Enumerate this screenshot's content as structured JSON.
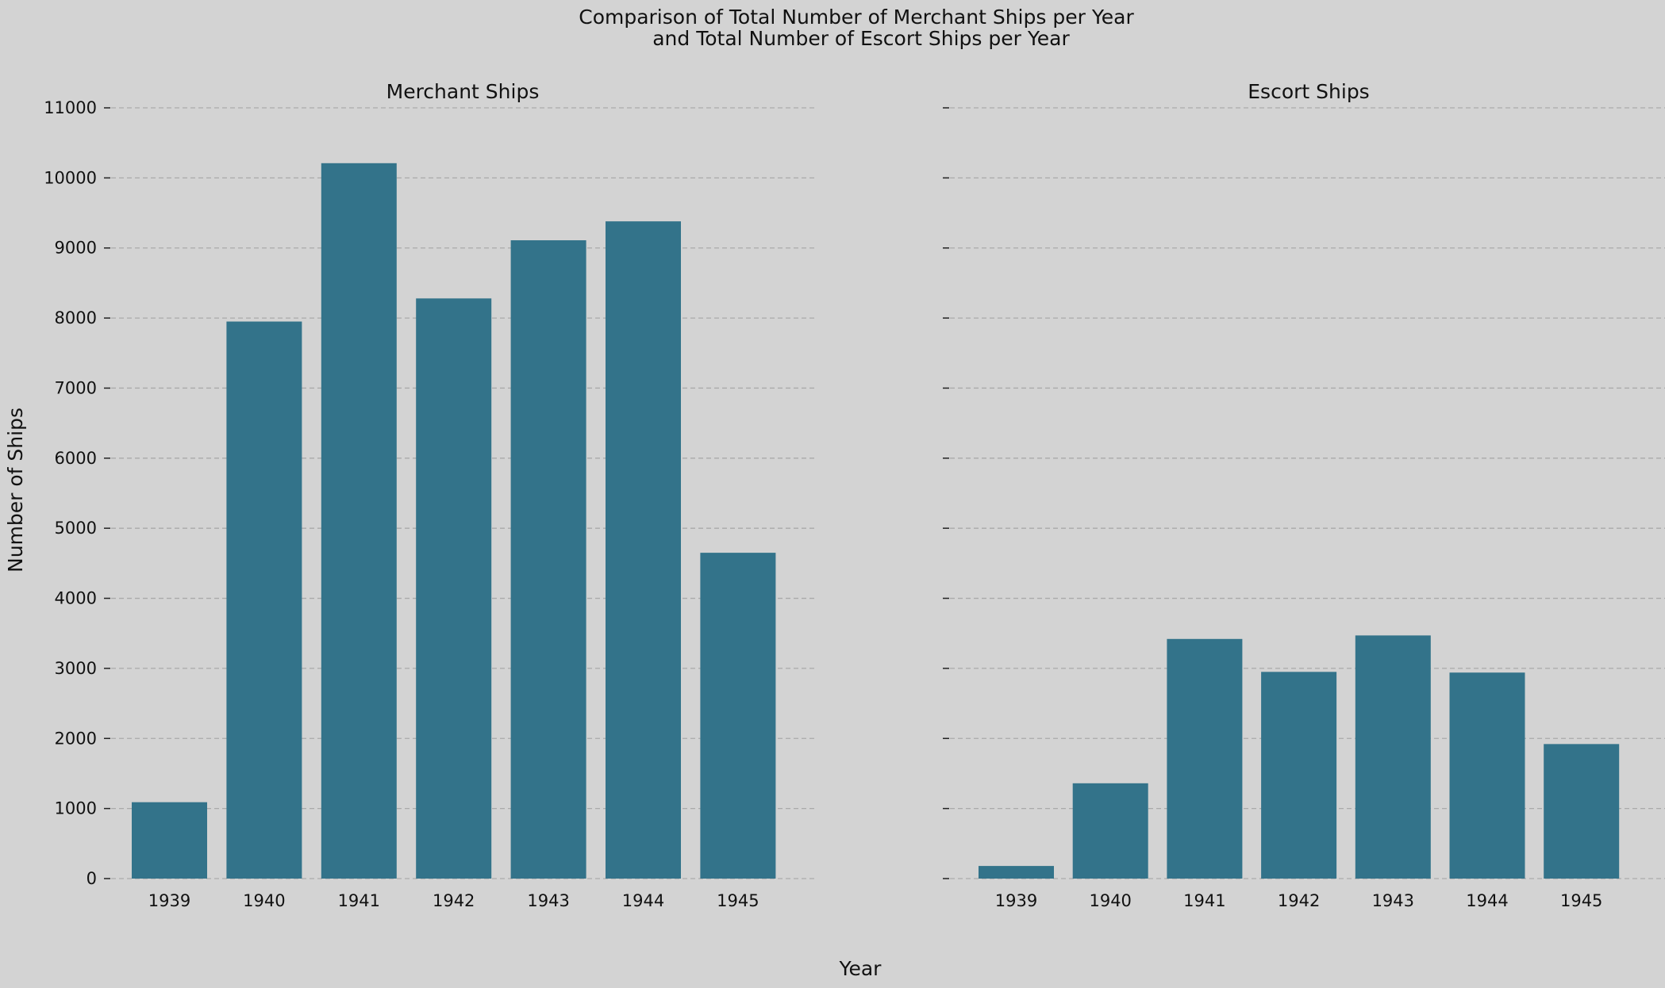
{
  "chart_data": {
    "type": "bar",
    "title_line1": "Comparison of Total Number of Merchant Ships per Year",
    "title_line2": "and Total Number of Escort Ships per Year",
    "xlabel": "Year",
    "ylabel": "Number of Ships",
    "ylim": [
      0,
      11000
    ],
    "yticks": [
      0,
      1000,
      2000,
      3000,
      4000,
      5000,
      6000,
      7000,
      8000,
      9000,
      10000,
      11000
    ],
    "grid": "y-dashed",
    "bar_color": "#33738a",
    "background_color": "#d3d3d3",
    "categories": [
      "1939",
      "1940",
      "1941",
      "1942",
      "1943",
      "1944",
      "1945"
    ],
    "panels": [
      {
        "name": "Merchant Ships",
        "values": [
          1090,
          7950,
          10210,
          8280,
          9110,
          9380,
          4650
        ]
      },
      {
        "name": "Escort Ships",
        "values": [
          180,
          1360,
          3420,
          2950,
          3470,
          2940,
          1920
        ]
      }
    ]
  }
}
